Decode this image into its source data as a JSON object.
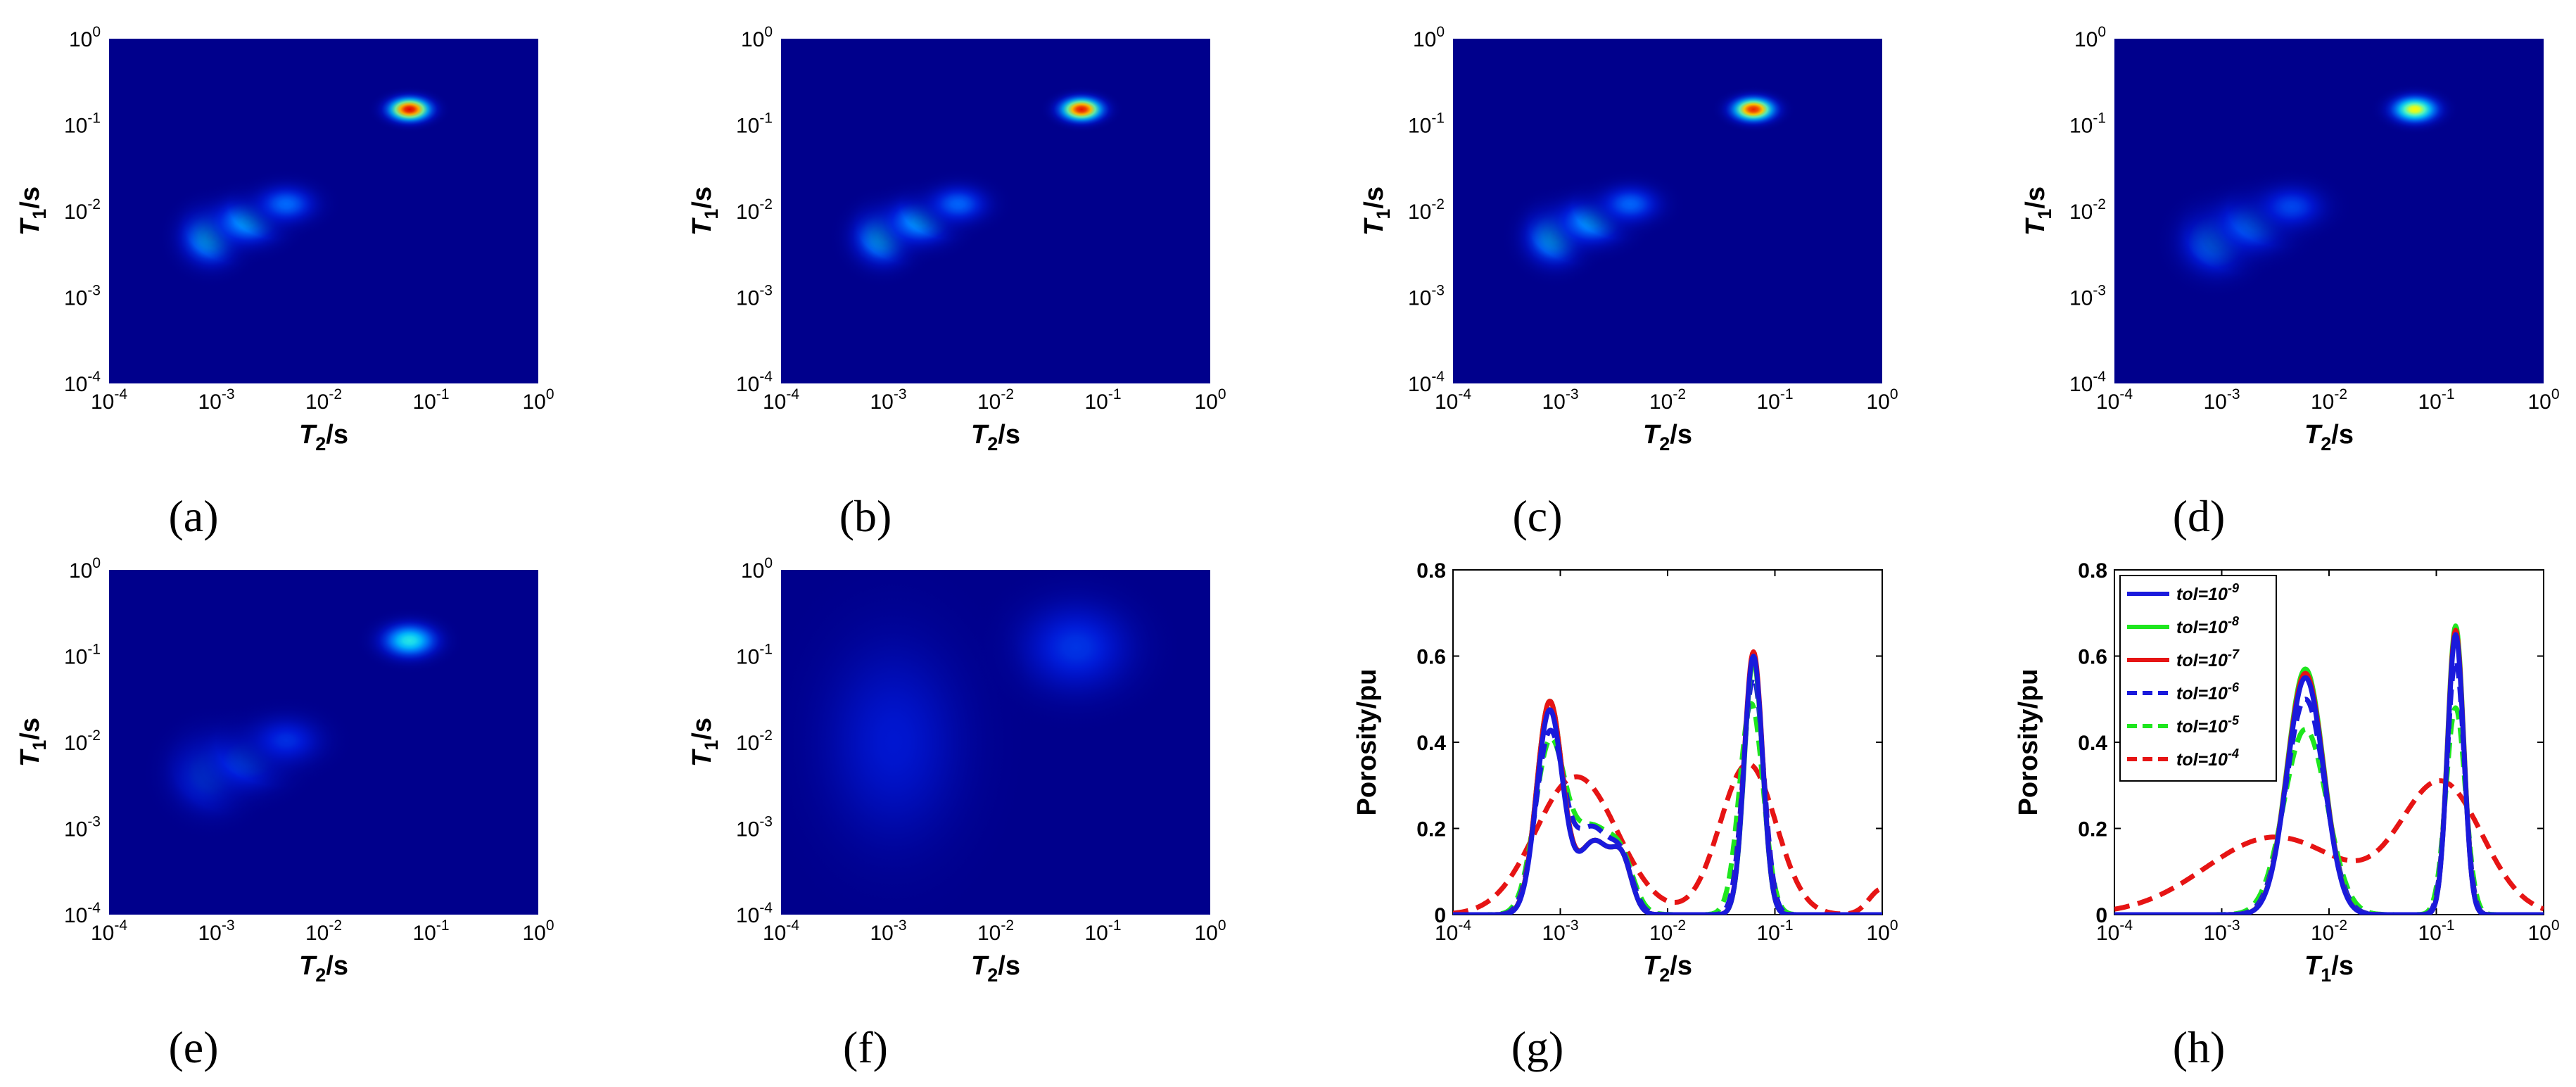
{
  "colors": {
    "map_background": "#00008c",
    "colormap": [
      "#00008c",
      "#0018d8",
      "#006cff",
      "#00c8ff",
      "#50ffc8",
      "#ffff00",
      "#ff8000",
      "#e00000"
    ],
    "series": {
      "blue": "#1a1adc",
      "green": "#1ee61e",
      "red": "#e61414"
    }
  },
  "chart_data": [
    {
      "id": "a",
      "caption": "(a)",
      "type": "heatmap",
      "xlabel": {
        "main": "T",
        "sub": "2",
        "suffix": "/s"
      },
      "ylabel": {
        "main": "T",
        "sub": "1",
        "suffix": "/s"
      },
      "xlim": [
        -4,
        0
      ],
      "ylim": [
        -4,
        0
      ],
      "scale": "log10",
      "x_ticks": [
        {
          "base": "10",
          "exp": "-4"
        },
        {
          "base": "10",
          "exp": "-3"
        },
        {
          "base": "10",
          "exp": "-2"
        },
        {
          "base": "10",
          "exp": "-1"
        },
        {
          "base": "10",
          "exp": "0"
        }
      ],
      "y_ticks": [
        {
          "base": "10",
          "exp": "-4"
        },
        {
          "base": "10",
          "exp": "-3"
        },
        {
          "base": "10",
          "exp": "-2"
        },
        {
          "base": "10",
          "exp": "-1"
        },
        {
          "base": "10",
          "exp": "0"
        }
      ],
      "blobs": [
        {
          "log_t2": -1.2,
          "log_t1": -0.82,
          "sigma_t2": 0.13,
          "sigma_t1": 0.09,
          "intensity": 1.0
        },
        {
          "log_t2": -3.05,
          "log_t1": -2.3,
          "sigma_t2": 0.17,
          "sigma_t1": 0.2,
          "intensity": 0.45
        },
        {
          "log_t2": -2.7,
          "log_t1": -2.12,
          "sigma_t2": 0.2,
          "sigma_t1": 0.17,
          "intensity": 0.38
        },
        {
          "log_t2": -2.35,
          "log_t1": -1.92,
          "sigma_t2": 0.18,
          "sigma_t1": 0.14,
          "intensity": 0.28
        }
      ]
    },
    {
      "id": "b",
      "caption": "(b)",
      "type": "heatmap",
      "xlabel": {
        "main": "T",
        "sub": "2",
        "suffix": "/s"
      },
      "ylabel": {
        "main": "T",
        "sub": "1",
        "suffix": "/s"
      },
      "xlim": [
        -4,
        0
      ],
      "ylim": [
        -4,
        0
      ],
      "scale": "log10",
      "x_ticks": [
        {
          "base": "10",
          "exp": "-4"
        },
        {
          "base": "10",
          "exp": "-3"
        },
        {
          "base": "10",
          "exp": "-2"
        },
        {
          "base": "10",
          "exp": "-1"
        },
        {
          "base": "10",
          "exp": "0"
        }
      ],
      "y_ticks": [
        {
          "base": "10",
          "exp": "-4"
        },
        {
          "base": "10",
          "exp": "-3"
        },
        {
          "base": "10",
          "exp": "-2"
        },
        {
          "base": "10",
          "exp": "-1"
        },
        {
          "base": "10",
          "exp": "0"
        }
      ],
      "blobs": [
        {
          "log_t2": -1.2,
          "log_t1": -0.82,
          "sigma_t2": 0.13,
          "sigma_t1": 0.09,
          "intensity": 0.98
        },
        {
          "log_t2": -3.05,
          "log_t1": -2.3,
          "sigma_t2": 0.17,
          "sigma_t1": 0.2,
          "intensity": 0.44
        },
        {
          "log_t2": -2.7,
          "log_t1": -2.12,
          "sigma_t2": 0.2,
          "sigma_t1": 0.17,
          "intensity": 0.37
        },
        {
          "log_t2": -2.35,
          "log_t1": -1.92,
          "sigma_t2": 0.18,
          "sigma_t1": 0.14,
          "intensity": 0.27
        }
      ]
    },
    {
      "id": "c",
      "caption": "(c)",
      "type": "heatmap",
      "xlabel": {
        "main": "T",
        "sub": "2",
        "suffix": "/s"
      },
      "ylabel": {
        "main": "T",
        "sub": "1",
        "suffix": "/s"
      },
      "xlim": [
        -4,
        0
      ],
      "ylim": [
        -4,
        0
      ],
      "scale": "log10",
      "x_ticks": [
        {
          "base": "10",
          "exp": "-4"
        },
        {
          "base": "10",
          "exp": "-3"
        },
        {
          "base": "10",
          "exp": "-2"
        },
        {
          "base": "10",
          "exp": "-1"
        },
        {
          "base": "10",
          "exp": "0"
        }
      ],
      "y_ticks": [
        {
          "base": "10",
          "exp": "-4"
        },
        {
          "base": "10",
          "exp": "-3"
        },
        {
          "base": "10",
          "exp": "-2"
        },
        {
          "base": "10",
          "exp": "-1"
        },
        {
          "base": "10",
          "exp": "0"
        }
      ],
      "blobs": [
        {
          "log_t2": -1.2,
          "log_t1": -0.82,
          "sigma_t2": 0.13,
          "sigma_t1": 0.09,
          "intensity": 0.96
        },
        {
          "log_t2": -3.05,
          "log_t1": -2.3,
          "sigma_t2": 0.17,
          "sigma_t1": 0.2,
          "intensity": 0.44
        },
        {
          "log_t2": -2.7,
          "log_t1": -2.12,
          "sigma_t2": 0.2,
          "sigma_t1": 0.17,
          "intensity": 0.37
        },
        {
          "log_t2": -2.35,
          "log_t1": -1.92,
          "sigma_t2": 0.18,
          "sigma_t1": 0.14,
          "intensity": 0.27
        }
      ]
    },
    {
      "id": "d",
      "caption": "(d)",
      "type": "heatmap",
      "xlabel": {
        "main": "T",
        "sub": "2",
        "suffix": "/s"
      },
      "ylabel": {
        "main": "T",
        "sub": "1",
        "suffix": "/s"
      },
      "xlim": [
        -4,
        0
      ],
      "ylim": [
        -4,
        0
      ],
      "scale": "log10",
      "x_ticks": [
        {
          "base": "10",
          "exp": "-4"
        },
        {
          "base": "10",
          "exp": "-3"
        },
        {
          "base": "10",
          "exp": "-2"
        },
        {
          "base": "10",
          "exp": "-1"
        },
        {
          "base": "10",
          "exp": "0"
        }
      ],
      "y_ticks": [
        {
          "base": "10",
          "exp": "-4"
        },
        {
          "base": "10",
          "exp": "-3"
        },
        {
          "base": "10",
          "exp": "-2"
        },
        {
          "base": "10",
          "exp": "-1"
        },
        {
          "base": "10",
          "exp": "0"
        }
      ],
      "blobs": [
        {
          "log_t2": -1.2,
          "log_t1": -0.82,
          "sigma_t2": 0.14,
          "sigma_t1": 0.1,
          "intensity": 0.72
        },
        {
          "log_t2": -3.05,
          "log_t1": -2.35,
          "sigma_t2": 0.2,
          "sigma_t1": 0.23,
          "intensity": 0.35
        },
        {
          "log_t2": -2.7,
          "log_t1": -2.15,
          "sigma_t2": 0.22,
          "sigma_t1": 0.2,
          "intensity": 0.3
        },
        {
          "log_t2": -2.35,
          "log_t1": -1.95,
          "sigma_t2": 0.2,
          "sigma_t1": 0.16,
          "intensity": 0.22
        }
      ]
    },
    {
      "id": "e",
      "caption": "(e)",
      "type": "heatmap",
      "xlabel": {
        "main": "T",
        "sub": "2",
        "suffix": "/s"
      },
      "ylabel": {
        "main": "T",
        "sub": "1",
        "suffix": "/s"
      },
      "xlim": [
        -4,
        0
      ],
      "ylim": [
        -4,
        0
      ],
      "scale": "log10",
      "x_ticks": [
        {
          "base": "10",
          "exp": "-4"
        },
        {
          "base": "10",
          "exp": "-3"
        },
        {
          "base": "10",
          "exp": "-2"
        },
        {
          "base": "10",
          "exp": "-1"
        },
        {
          "base": "10",
          "exp": "0"
        }
      ],
      "y_ticks": [
        {
          "base": "10",
          "exp": "-4"
        },
        {
          "base": "10",
          "exp": "-3"
        },
        {
          "base": "10",
          "exp": "-2"
        },
        {
          "base": "10",
          "exp": "-1"
        },
        {
          "base": "10",
          "exp": "0"
        }
      ],
      "blobs": [
        {
          "log_t2": -1.2,
          "log_t1": -0.82,
          "sigma_t2": 0.17,
          "sigma_t1": 0.13,
          "intensity": 0.5
        },
        {
          "log_t2": -3.05,
          "log_t1": -2.35,
          "sigma_t2": 0.22,
          "sigma_t1": 0.27,
          "intensity": 0.27
        },
        {
          "log_t2": -2.7,
          "log_t1": -2.2,
          "sigma_t2": 0.24,
          "sigma_t1": 0.22,
          "intensity": 0.24
        },
        {
          "log_t2": -2.35,
          "log_t1": -1.98,
          "sigma_t2": 0.22,
          "sigma_t1": 0.18,
          "intensity": 0.18
        }
      ]
    },
    {
      "id": "f",
      "caption": "(f)",
      "type": "heatmap",
      "xlabel": {
        "main": "T",
        "sub": "2",
        "suffix": "/s"
      },
      "ylabel": {
        "main": "T",
        "sub": "1",
        "suffix": "/s"
      },
      "xlim": [
        -4,
        0
      ],
      "ylim": [
        -4,
        0
      ],
      "scale": "log10",
      "x_ticks": [
        {
          "base": "10",
          "exp": "-4"
        },
        {
          "base": "10",
          "exp": "-3"
        },
        {
          "base": "10",
          "exp": "-2"
        },
        {
          "base": "10",
          "exp": "-1"
        },
        {
          "base": "10",
          "exp": "0"
        }
      ],
      "y_ticks": [
        {
          "base": "10",
          "exp": "-4"
        },
        {
          "base": "10",
          "exp": "-3"
        },
        {
          "base": "10",
          "exp": "-2"
        },
        {
          "base": "10",
          "exp": "-1"
        },
        {
          "base": "10",
          "exp": "0"
        }
      ],
      "blobs": [
        {
          "log_t2": -1.25,
          "log_t1": -0.9,
          "sigma_t2": 0.35,
          "sigma_t1": 0.35,
          "intensity": 0.19
        },
        {
          "log_t2": -2.95,
          "log_t1": -2.0,
          "sigma_t2": 0.45,
          "sigma_t1": 0.8,
          "intensity": 0.13
        }
      ]
    },
    {
      "id": "g",
      "caption": "(g)",
      "type": "line",
      "xlabel": {
        "main": "T",
        "sub": "2",
        "suffix": "/s"
      },
      "ylabel": {
        "main": "Porosity/pu",
        "sub": "",
        "suffix": ""
      },
      "xlim": [
        -4,
        0
      ],
      "ylim": [
        0,
        0.8
      ],
      "scale": "log10-x",
      "x_ticks": [
        {
          "base": "10",
          "exp": "-4"
        },
        {
          "base": "10",
          "exp": "-3"
        },
        {
          "base": "10",
          "exp": "-2"
        },
        {
          "base": "10",
          "exp": "-1"
        },
        {
          "base": "10",
          "exp": "0"
        }
      ],
      "y_ticks": [
        "0",
        "0.2",
        "0.4",
        "0.6",
        "0.8"
      ],
      "y_tick_values": [
        0,
        0.2,
        0.4,
        0.6,
        0.8
      ],
      "series": [
        {
          "name": "tol=10-9",
          "color": "blue",
          "dashed": false,
          "peaks": [
            {
              "mu": -3.1,
              "s": 0.12,
              "a": 0.47
            },
            {
              "mu": -2.68,
              "s": 0.16,
              "a": 0.17
            },
            {
              "mu": -2.42,
              "s": 0.09,
              "a": 0.1
            },
            {
              "mu": -1.2,
              "s": 0.085,
              "a": 0.6
            }
          ]
        },
        {
          "name": "tol=10-8",
          "color": "green",
          "dashed": false,
          "peaks": [
            {
              "mu": -3.1,
              "s": 0.12,
              "a": 0.49
            },
            {
              "mu": -2.68,
              "s": 0.16,
              "a": 0.17
            },
            {
              "mu": -2.42,
              "s": 0.09,
              "a": 0.1
            },
            {
              "mu": -1.2,
              "s": 0.085,
              "a": 0.59
            }
          ]
        },
        {
          "name": "tol=10-7",
          "color": "red",
          "dashed": false,
          "peaks": [
            {
              "mu": -3.1,
              "s": 0.12,
              "a": 0.49
            },
            {
              "mu": -2.68,
              "s": 0.16,
              "a": 0.17
            },
            {
              "mu": -2.42,
              "s": 0.09,
              "a": 0.1
            },
            {
              "mu": -1.2,
              "s": 0.085,
              "a": 0.61
            }
          ]
        },
        {
          "name": "tol=10-6",
          "color": "blue",
          "dashed": true,
          "peaks": [
            {
              "mu": -3.1,
              "s": 0.13,
              "a": 0.41
            },
            {
              "mu": -2.7,
              "s": 0.18,
              "a": 0.2
            },
            {
              "mu": -2.42,
              "s": 0.1,
              "a": 0.09
            },
            {
              "mu": -1.2,
              "s": 0.095,
              "a": 0.55
            }
          ]
        },
        {
          "name": "tol=10-5",
          "color": "green",
          "dashed": true,
          "peaks": [
            {
              "mu": -3.1,
              "s": 0.14,
              "a": 0.38
            },
            {
              "mu": -2.7,
              "s": 0.2,
              "a": 0.2
            },
            {
              "mu": -2.42,
              "s": 0.11,
              "a": 0.08
            },
            {
              "mu": -1.22,
              "s": 0.11,
              "a": 0.49
            }
          ]
        },
        {
          "name": "tol=10-4",
          "color": "red",
          "dashed": true,
          "peaks": [
            {
              "mu": -2.85,
              "s": 0.38,
              "a": 0.32
            },
            {
              "mu": -1.25,
              "s": 0.26,
              "a": 0.35
            },
            {
              "mu": 0.0,
              "s": 0.12,
              "a": 0.06
            }
          ]
        }
      ]
    },
    {
      "id": "h",
      "caption": "(h)",
      "type": "line",
      "xlabel": {
        "main": "T",
        "sub": "1",
        "suffix": "/s"
      },
      "ylabel": {
        "main": "Porosity/pu",
        "sub": "",
        "suffix": ""
      },
      "xlim": [
        -4,
        0
      ],
      "ylim": [
        0,
        0.8
      ],
      "scale": "log10-x",
      "x_ticks": [
        {
          "base": "10",
          "exp": "-4"
        },
        {
          "base": "10",
          "exp": "-3"
        },
        {
          "base": "10",
          "exp": "-2"
        },
        {
          "base": "10",
          "exp": "-1"
        },
        {
          "base": "10",
          "exp": "0"
        }
      ],
      "y_ticks": [
        "0",
        "0.2",
        "0.4",
        "0.6",
        "0.8"
      ],
      "y_tick_values": [
        0,
        0.2,
        0.4,
        0.6,
        0.8
      ],
      "legend": {
        "position": "top-left",
        "entries": [
          {
            "base": "tol=10",
            "exp": "-9",
            "color": "blue",
            "dashed": false
          },
          {
            "base": "tol=10",
            "exp": "-8",
            "color": "green",
            "dashed": false
          },
          {
            "base": "tol=10",
            "exp": "-7",
            "color": "red",
            "dashed": false
          },
          {
            "base": "tol=10",
            "exp": "-6",
            "color": "blue",
            "dashed": true
          },
          {
            "base": "tol=10",
            "exp": "-5",
            "color": "green",
            "dashed": true
          },
          {
            "base": "tol=10",
            "exp": "-4",
            "color": "red",
            "dashed": true
          }
        ]
      },
      "series": [
        {
          "name": "tol=10-9",
          "color": "blue",
          "dashed": false,
          "peaks": [
            {
              "mu": -2.22,
              "s": 0.17,
              "a": 0.55
            },
            {
              "mu": -0.82,
              "s": 0.075,
              "a": 0.65
            }
          ]
        },
        {
          "name": "tol=10-8",
          "color": "green",
          "dashed": false,
          "peaks": [
            {
              "mu": -2.22,
              "s": 0.17,
              "a": 0.57
            },
            {
              "mu": -0.82,
              "s": 0.075,
              "a": 0.67
            }
          ]
        },
        {
          "name": "tol=10-7",
          "color": "red",
          "dashed": false,
          "peaks": [
            {
              "mu": -2.22,
              "s": 0.17,
              "a": 0.56
            },
            {
              "mu": -0.82,
              "s": 0.075,
              "a": 0.66
            }
          ]
        },
        {
          "name": "tol=10-6",
          "color": "blue",
          "dashed": true,
          "peaks": [
            {
              "mu": -2.22,
              "s": 0.18,
              "a": 0.5
            },
            {
              "mu": -0.82,
              "s": 0.08,
              "a": 0.59
            }
          ]
        },
        {
          "name": "tol=10-5",
          "color": "green",
          "dashed": true,
          "peaks": [
            {
              "mu": -2.22,
              "s": 0.2,
              "a": 0.43
            },
            {
              "mu": -0.82,
              "s": 0.09,
              "a": 0.48
            }
          ]
        },
        {
          "name": "tol=10-4",
          "color": "red",
          "dashed": true,
          "peaks": [
            {
              "mu": -2.5,
              "s": 0.65,
              "a": 0.18
            },
            {
              "mu": -0.95,
              "s": 0.38,
              "a": 0.3
            }
          ]
        }
      ]
    }
  ]
}
